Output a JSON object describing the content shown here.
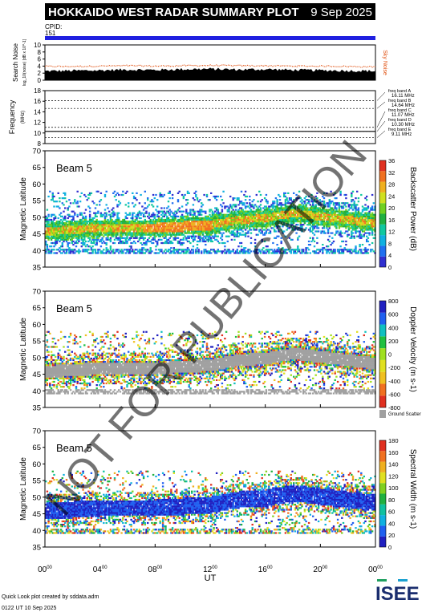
{
  "header": {
    "title": "HOKKAIDO WEST RADAR SUMMARY PLOT",
    "date": "9 Sep 2025",
    "cpid_label": "CPID:",
    "cpid_value": "151"
  },
  "colors": {
    "title_bar": "#000000",
    "cpid_bar": "#2020e0",
    "noise_line": "#e05010",
    "sky_noise": "#e05010"
  },
  "footer": {
    "credit": "Quick Look plot created by sddata.adm",
    "timestamp": "0122 UT 10 Sep 2025",
    "logo": "ISEE"
  },
  "watermark": "NOT FOR PUBLICATION",
  "chart_data": [
    {
      "type": "area",
      "panel": "search-noise",
      "ylabel": "Search Noise",
      "ylabel2": "log_10(noise) [dB x 10^-1]",
      "ylim": [
        0,
        10
      ],
      "yticks": [
        "0",
        "2",
        "4",
        "6",
        "8",
        "10"
      ],
      "legend": "Sky Noise",
      "x": [
        0,
        2,
        4,
        6,
        8,
        10,
        12,
        14,
        16,
        18,
        20,
        22,
        24
      ],
      "sky_noise": [
        3.9,
        3.9,
        4.0,
        4.1,
        4.0,
        4.1,
        4.2,
        4.1,
        4.1,
        4.0,
        4.0,
        3.9,
        3.8
      ],
      "search_noise": [
        2.6,
        2.7,
        2.8,
        3.0,
        2.9,
        3.1,
        3.2,
        3.0,
        3.1,
        2.9,
        2.8,
        2.7,
        2.6
      ]
    },
    {
      "type": "line",
      "panel": "frequency",
      "ylabel": "Frequency",
      "yunit": "(MHz)",
      "ylim": [
        8,
        18
      ],
      "yticks": [
        "8",
        "10",
        "12",
        "14",
        "16",
        "18"
      ],
      "bands": [
        {
          "name": "freq band A",
          "value": "16.11 MHz",
          "mhz": 16.11
        },
        {
          "name": "freq band B",
          "value": "14.64 MHz",
          "mhz": 14.64
        },
        {
          "name": "freq band C",
          "value": "11.07 MHz",
          "mhz": 11.07
        },
        {
          "name": "freq band D",
          "value": "10.30 MHz",
          "mhz": 10.3
        },
        {
          "name": "freq band E",
          "value": "9.11 MHz",
          "mhz": 9.11
        }
      ],
      "operating_frequency_mhz": 10.3
    },
    {
      "type": "heatmap",
      "panel": "power",
      "beam_label": "Beam  5",
      "ylabel": "Magnetic Latitude",
      "ylim": [
        35,
        70
      ],
      "yticks": [
        "35",
        "40",
        "45",
        "50",
        "55",
        "60",
        "65",
        "70"
      ],
      "colorbar_label": "Backscatter Power (dB)",
      "colorbar_ticks": [
        "0",
        "4",
        "8",
        "12",
        "16",
        "20",
        "24",
        "28",
        "32",
        "36"
      ],
      "colorbar_colors": [
        "#3030d0",
        "#2070f0",
        "#10b0e0",
        "#10c8a0",
        "#20b040",
        "#70d020",
        "#d0e020",
        "#f0b020",
        "#f07020",
        "#e03020"
      ],
      "gate_range": [
        39,
        58
      ],
      "echo_band_center": [
        [
          0,
          45.5
        ],
        [
          4,
          46.5
        ],
        [
          8,
          46.5
        ],
        [
          10,
          47
        ],
        [
          12,
          47.5
        ],
        [
          14,
          49
        ],
        [
          16,
          49.5
        ],
        [
          18,
          51
        ],
        [
          20,
          50
        ],
        [
          22,
          49
        ],
        [
          24,
          48
        ]
      ]
    },
    {
      "type": "heatmap",
      "panel": "velocity",
      "beam_label": "Beam  5",
      "ylabel": "Magnetic Latitude",
      "ylim": [
        35,
        70
      ],
      "yticks": [
        "35",
        "40",
        "45",
        "50",
        "55",
        "60",
        "65",
        "70"
      ],
      "colorbar_label": "Doppler Velocity (m s-1)",
      "colorbar_ticks": [
        "-800",
        "-600",
        "-400",
        "-200",
        "0",
        "200",
        "400",
        "600",
        "800"
      ],
      "colorbar_colors": [
        "#e03020",
        "#f07020",
        "#f0c020",
        "#e0e020",
        "#a0e020",
        "#20c040",
        "#10c0c0",
        "#2060f0",
        "#2020c0"
      ],
      "ground_scatter_label": "Ground Scatter",
      "ground_scatter_color": "#a0a0a0"
    },
    {
      "type": "heatmap",
      "panel": "spectral-width",
      "beam_label": "Beam  5",
      "ylabel": "Magnetic Latitude",
      "ylim": [
        35,
        70
      ],
      "yticks": [
        "35",
        "40",
        "45",
        "50",
        "55",
        "60",
        "65",
        "70"
      ],
      "colorbar_label": "Spectral Width (m s-1)",
      "colorbar_ticks": [
        "0",
        "20",
        "40",
        "60",
        "80",
        "100",
        "120",
        "140",
        "160",
        "180"
      ],
      "colorbar_colors": [
        "#2020c0",
        "#2060f0",
        "#10b0e0",
        "#10c0a0",
        "#20b040",
        "#80d020",
        "#e0e020",
        "#f0b020",
        "#f07020",
        "#e03020"
      ]
    }
  ],
  "x_axis": {
    "label": "UT",
    "xlim": [
      0,
      24
    ],
    "ticks": [
      "00",
      "04",
      "08",
      "12",
      "16",
      "20",
      "00"
    ],
    "tick_superscript": "00"
  }
}
